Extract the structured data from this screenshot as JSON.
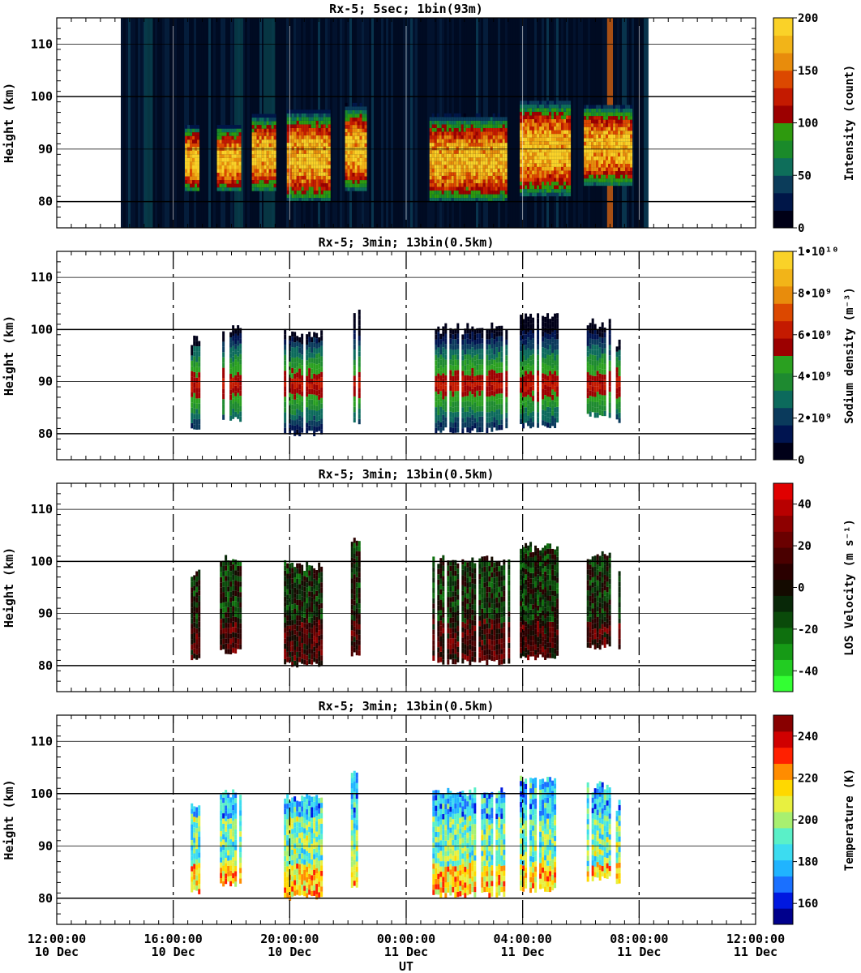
{
  "figure": {
    "xlabel": "UT",
    "x_ticks": [
      {
        "time": "12:00:00",
        "date": "10 Dec"
      },
      {
        "time": "16:00:00",
        "date": "10 Dec"
      },
      {
        "time": "20:00:00",
        "date": "10 Dec"
      },
      {
        "time": "00:00:00",
        "date": "11 Dec"
      },
      {
        "time": "04:00:00",
        "date": "11 Dec"
      },
      {
        "time": "08:00:00",
        "date": "11 Dec"
      },
      {
        "time": "12:00:00",
        "date": "11 Dec"
      }
    ]
  },
  "chart_data": [
    {
      "type": "heatmap",
      "title": "Rx-5;  5sec; 1bin(93m)",
      "ylabel": "Height (km)",
      "ylim": [
        75,
        115
      ],
      "y_ticks": [
        80,
        90,
        100,
        110
      ],
      "xlim": [
        "2023-12-10 12:00",
        "2023-12-11 12:00"
      ],
      "colorbar": {
        "label": "Intensity (count)",
        "range": [
          0,
          200
        ],
        "ticks": [
          "0",
          "50",
          "100",
          "150",
          "200"
        ],
        "colors": [
          "#000016",
          "#001648",
          "#0b3c5a",
          "#0e6e5a",
          "#1a8a2a",
          "#2e9a0e",
          "#9c0000",
          "#c41a00",
          "#dc4800",
          "#e88c0c",
          "#f2b418",
          "#fad228"
        ]
      },
      "data_intervals": [
        {
          "start_hour": 14.2,
          "end_hour": 32.3,
          "description": "background noise"
        },
        {
          "start_hour": 16.4,
          "end_hour": 16.9,
          "layer_km": [
            82,
            96
          ]
        },
        {
          "start_hour": 17.5,
          "end_hour": 18.3,
          "layer_km": [
            82,
            96
          ]
        },
        {
          "start_hour": 18.7,
          "end_hour": 19.5,
          "layer_km": [
            82,
            98
          ]
        },
        {
          "start_hour": 19.9,
          "end_hour": 21.4,
          "layer_km": [
            80,
            99
          ]
        },
        {
          "start_hour": 21.9,
          "end_hour": 22.6,
          "layer_km": [
            82,
            100
          ]
        },
        {
          "start_hour": 24.8,
          "end_hour": 27.4,
          "layer_km": [
            80,
            98
          ]
        },
        {
          "start_hour": 27.9,
          "end_hour": 29.6,
          "layer_km": [
            81,
            101
          ]
        },
        {
          "start_hour": 30.1,
          "end_hour": 31.7,
          "layer_km": [
            83,
            100
          ]
        }
      ]
    },
    {
      "type": "heatmap",
      "title": "Rx-5; 3min; 13bin(0.5km)",
      "ylabel": "Height (km)",
      "ylim": [
        75,
        115
      ],
      "y_ticks": [
        80,
        90,
        100,
        110
      ],
      "colorbar": {
        "label": "Sodium density (m⁻³)",
        "range": [
          0,
          10000000000.0
        ],
        "ticks": [
          "0",
          "2•10⁹",
          "4•10⁹",
          "6•10⁹",
          "8•10⁹",
          "1•10¹⁰"
        ],
        "colors": [
          "#000018",
          "#001450",
          "#0a3a5c",
          "#0c6a5c",
          "#1e8a30",
          "#2aa020",
          "#9c0000",
          "#c41a00",
          "#dc4800",
          "#e88c0c",
          "#f2b418",
          "#fad228"
        ]
      },
      "data_intervals": [
        {
          "start_hour": 16.6,
          "end_hour": 16.9,
          "bottom_km": 80.5,
          "top_km": 98
        },
        {
          "start_hour": 17.6,
          "end_hour": 18.3,
          "bottom_km": 82,
          "top_km": 100.5
        },
        {
          "start_hour": 19.8,
          "end_hour": 21.1,
          "bottom_km": 79.5,
          "top_km": 99.5
        },
        {
          "start_hour": 22.1,
          "end_hour": 22.4,
          "bottom_km": 81.5,
          "top_km": 104
        },
        {
          "start_hour": 24.9,
          "end_hour": 27.5,
          "bottom_km": 80,
          "top_km": 100.5
        },
        {
          "start_hour": 27.9,
          "end_hour": 29.2,
          "bottom_km": 81,
          "top_km": 103
        },
        {
          "start_hour": 30.2,
          "end_hour": 31.0,
          "bottom_km": 83,
          "top_km": 101.5
        },
        {
          "start_hour": 31.2,
          "end_hour": 31.3,
          "bottom_km": 82,
          "top_km": 98
        }
      ]
    },
    {
      "type": "heatmap",
      "title": "Rx-5; 3min; 13bin(0.5km)",
      "ylabel": "Height (km)",
      "ylim": [
        75,
        115
      ],
      "y_ticks": [
        80,
        90,
        100,
        110
      ],
      "colorbar": {
        "label": "LOS Velocity (m s⁻¹)",
        "range": [
          -50,
          50
        ],
        "ticks": [
          "-40",
          "-20",
          "0",
          "20",
          "40"
        ],
        "colors": [
          "#33ff33",
          "#22cc22",
          "#169a16",
          "#0e700e",
          "#0a4a0a",
          "#082808",
          "#140a00",
          "#2a0000",
          "#4a0000",
          "#6a0000",
          "#8e0000",
          "#b80000",
          "#e00000"
        ]
      },
      "data_intervals": [
        {
          "start_hour": 16.6,
          "end_hour": 16.9,
          "bottom_km": 80.5,
          "top_km": 98
        },
        {
          "start_hour": 17.6,
          "end_hour": 18.3,
          "bottom_km": 82,
          "top_km": 100.5
        },
        {
          "start_hour": 19.8,
          "end_hour": 21.1,
          "bottom_km": 79.5,
          "top_km": 99.5
        },
        {
          "start_hour": 22.1,
          "end_hour": 22.4,
          "bottom_km": 81.5,
          "top_km": 104
        },
        {
          "start_hour": 24.9,
          "end_hour": 27.5,
          "bottom_km": 80,
          "top_km": 100.5
        },
        {
          "start_hour": 27.9,
          "end_hour": 29.2,
          "bottom_km": 81,
          "top_km": 103
        },
        {
          "start_hour": 30.2,
          "end_hour": 31.0,
          "bottom_km": 83,
          "top_km": 101.5
        },
        {
          "start_hour": 31.2,
          "end_hour": 31.3,
          "bottom_km": 82,
          "top_km": 98
        }
      ]
    },
    {
      "type": "heatmap",
      "title": "Rx-5; 3min; 13bin(0.5km)",
      "ylabel": "Height (km)",
      "ylim": [
        75,
        115
      ],
      "y_ticks": [
        80,
        90,
        100,
        110
      ],
      "colorbar": {
        "label": "Temperature (K)",
        "range": [
          150,
          250
        ],
        "ticks": [
          "160",
          "180",
          "200",
          "220",
          "240"
        ],
        "colors": [
          "#00008c",
          "#0018e0",
          "#1a70ff",
          "#20b4ff",
          "#3cdcf0",
          "#5af0c8",
          "#a8f070",
          "#e8f040",
          "#ffd800",
          "#ff8c00",
          "#ff2000",
          "#d00000",
          "#880000"
        ]
      },
      "data_intervals": [
        {
          "start_hour": 16.6,
          "end_hour": 16.9,
          "bottom_km": 80.5,
          "top_km": 98
        },
        {
          "start_hour": 17.6,
          "end_hour": 18.3,
          "bottom_km": 82,
          "top_km": 100.5
        },
        {
          "start_hour": 19.8,
          "end_hour": 21.1,
          "bottom_km": 79.5,
          "top_km": 99.5
        },
        {
          "start_hour": 22.1,
          "end_hour": 22.4,
          "bottom_km": 81.5,
          "top_km": 104
        },
        {
          "start_hour": 24.9,
          "end_hour": 27.5,
          "bottom_km": 80,
          "top_km": 100.5
        },
        {
          "start_hour": 27.9,
          "end_hour": 29.2,
          "bottom_km": 81,
          "top_km": 103
        },
        {
          "start_hour": 30.2,
          "end_hour": 31.0,
          "bottom_km": 83,
          "top_km": 101.5
        },
        {
          "start_hour": 31.2,
          "end_hour": 31.3,
          "bottom_km": 82,
          "top_km": 98
        }
      ]
    }
  ]
}
